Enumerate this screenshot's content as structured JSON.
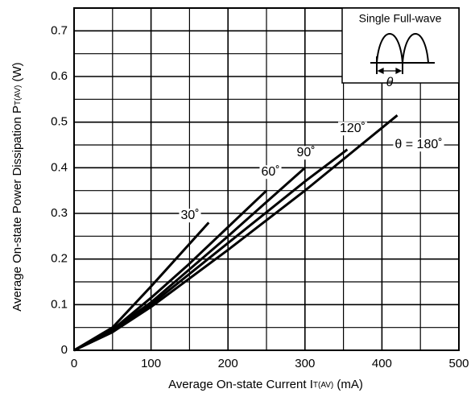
{
  "chart_data": {
    "type": "line",
    "x_label": {
      "text": "Average On-state Current I",
      "sub": "T(AV)",
      "unit": " (mA)"
    },
    "y_label": {
      "text": "Average On-state Power Dissipation P",
      "sub": "T(AV)",
      "unit": " (W)"
    },
    "inset": {
      "title": "Single Full-wave",
      "symbol": "θ"
    },
    "xlim": [
      0,
      500
    ],
    "ylim": [
      0,
      0.75
    ],
    "xticks": [
      0,
      100,
      200,
      300,
      400,
      500
    ],
    "yticks": [
      0,
      0.1,
      0.2,
      0.3,
      0.4,
      0.5,
      0.6,
      0.7
    ],
    "x_minor_ticks": [
      50,
      150,
      250,
      350,
      450
    ],
    "y_minor_ticks": [
      0.05,
      0.15,
      0.25,
      0.35,
      0.45,
      0.55,
      0.65
    ],
    "grid": true,
    "series": [
      {
        "name": "30˚",
        "color": "#000000",
        "x": [
          0,
          50,
          100,
          175
        ],
        "values": [
          0,
          0.05,
          0.14,
          0.28
        ]
      },
      {
        "name": "60˚",
        "color": "#000000",
        "x": [
          0,
          50,
          100,
          150,
          200,
          250
        ],
        "values": [
          0,
          0.045,
          0.115,
          0.19,
          0.27,
          0.35
        ]
      },
      {
        "name": "90˚",
        "color": "#000000",
        "x": [
          0,
          50,
          100,
          200,
          300
        ],
        "values": [
          0,
          0.045,
          0.105,
          0.25,
          0.4
        ]
      },
      {
        "name": "120˚",
        "color": "#000000",
        "x": [
          0,
          50,
          100,
          200,
          300,
          355
        ],
        "values": [
          0,
          0.04,
          0.1,
          0.235,
          0.37,
          0.44
        ]
      },
      {
        "name": "θ = 180˚",
        "color": "#000000",
        "x": [
          0,
          50,
          100,
          200,
          300,
          420
        ],
        "values": [
          0,
          0.04,
          0.095,
          0.22,
          0.35,
          0.515
        ]
      }
    ]
  }
}
